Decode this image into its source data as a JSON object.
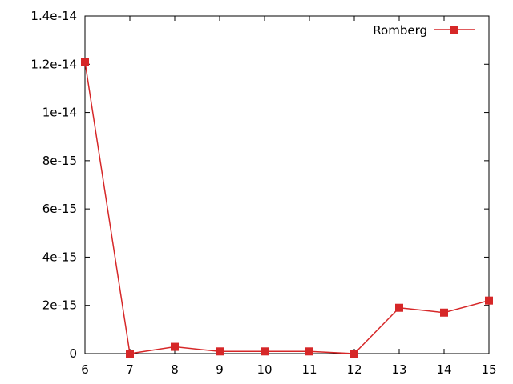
{
  "chart_data": {
    "type": "line",
    "title": "",
    "xlabel": "",
    "ylabel": "",
    "xlim": [
      6,
      15
    ],
    "ylim": [
      0,
      1.4e-14
    ],
    "x_ticks": [
      6,
      7,
      8,
      9,
      10,
      11,
      12,
      13,
      14,
      15
    ],
    "x_tick_labels": [
      "6",
      "7",
      "8",
      "9",
      "10",
      "11",
      "12",
      "13",
      "14",
      "15"
    ],
    "y_ticks": [
      0,
      2e-15,
      4e-15,
      6e-15,
      8e-15,
      1e-14,
      1.2e-14,
      1.4e-14
    ],
    "y_tick_labels": [
      "0",
      "2e-15",
      "4e-15",
      "6e-15",
      "8e-15",
      "1e-14",
      "1.2e-14",
      "1.4e-14"
    ],
    "grid": false,
    "legend_position": "top-right",
    "series": [
      {
        "name": "Romberg",
        "color": "#d62728",
        "marker": "square",
        "x": [
          6,
          7,
          8,
          9,
          10,
          11,
          12,
          13,
          14,
          15
        ],
        "y": [
          1.21e-14,
          0,
          2.8e-16,
          9e-17,
          9e-17,
          9e-17,
          0,
          1.9e-15,
          1.7e-15,
          2.2e-15
        ]
      }
    ]
  }
}
